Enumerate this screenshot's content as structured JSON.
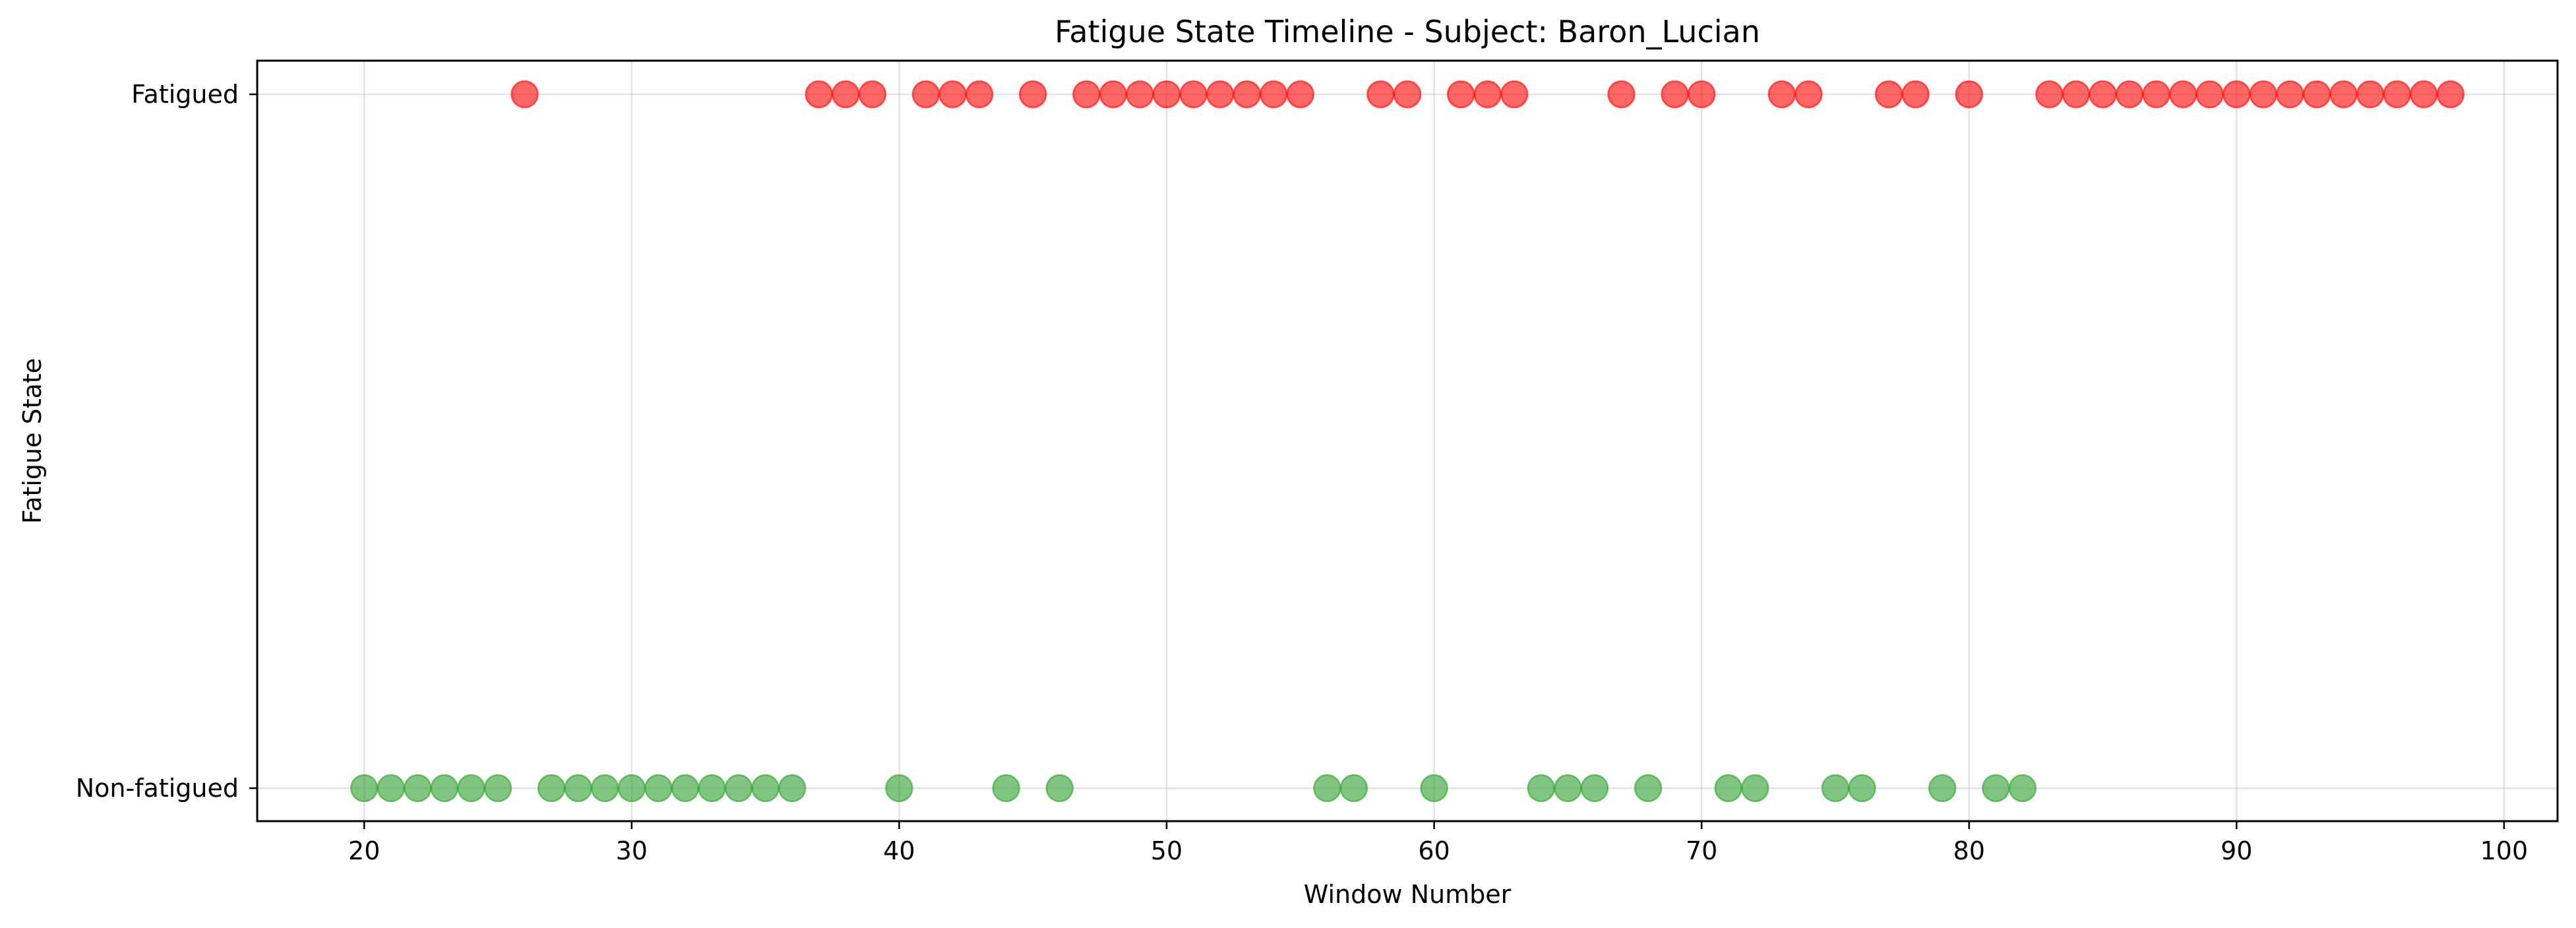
{
  "chart_data": {
    "type": "scatter",
    "title": "Fatigue State Timeline - Subject: Baron_Lucian",
    "xlabel": "Window Number",
    "ylabel": "Fatigue State",
    "xlim": [
      16,
      102
    ],
    "x_ticks": [
      20,
      30,
      40,
      50,
      60,
      70,
      80,
      90,
      100
    ],
    "y_categories": [
      "Non-fatigued",
      "Fatigued"
    ],
    "grid": true,
    "legend": "none",
    "series": [
      {
        "category": "Non-fatigued",
        "color": "#2ca02c",
        "x": [
          20,
          21,
          22,
          23,
          24,
          25,
          27,
          28,
          29,
          30,
          31,
          32,
          33,
          34,
          35,
          36,
          40,
          44,
          46,
          56,
          57,
          60,
          64,
          65,
          66,
          68,
          71,
          72,
          75,
          76,
          79,
          81,
          82
        ]
      },
      {
        "category": "Fatigued",
        "color": "#ff0000",
        "x": [
          26,
          37,
          38,
          39,
          41,
          42,
          43,
          45,
          47,
          48,
          49,
          50,
          51,
          52,
          53,
          54,
          55,
          58,
          59,
          61,
          62,
          63,
          67,
          69,
          70,
          73,
          74,
          77,
          78,
          80,
          83,
          84,
          85,
          86,
          87,
          88,
          89,
          90,
          91,
          92,
          93,
          94,
          95,
          96,
          97,
          98
        ]
      }
    ]
  }
}
